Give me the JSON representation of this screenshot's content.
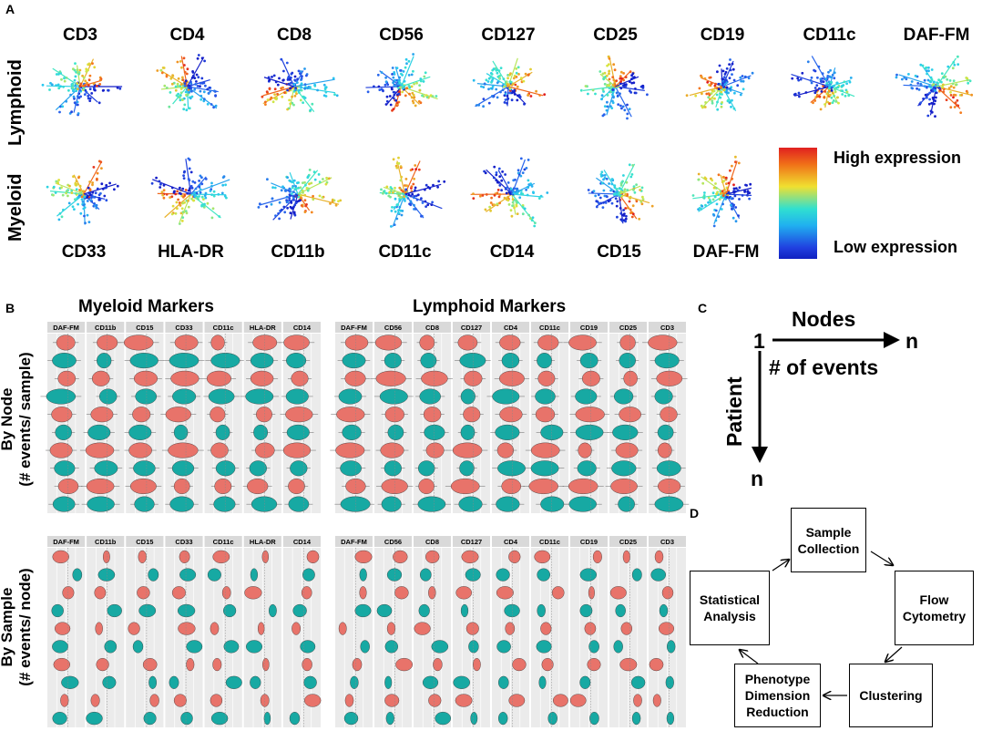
{
  "panelA": {
    "letter": "A",
    "lymphoid_label": "Lymphoid",
    "myeloid_label": "Myeloid",
    "lymphoid_markers": [
      "CD3",
      "CD4",
      "CD8",
      "CD56",
      "CD127",
      "CD25",
      "CD19",
      "CD11c",
      "DAF-FM"
    ],
    "myeloid_markers": [
      "CD33",
      "HLA-DR",
      "CD11b",
      "CD11c",
      "CD14",
      "CD15",
      "DAF-FM"
    ],
    "legend_high": "High expression",
    "legend_low": "Low expression"
  },
  "panelB": {
    "letter": "B",
    "myeloid_title": "Myeloid Markers",
    "lymphoid_title": "Lymphoid Markers",
    "by_node_line1": "By Node",
    "by_node_line2": "(# events/ sample)",
    "by_sample_line1": "By Sample",
    "by_sample_line2": "(# events/ node)",
    "myeloid_headers": [
      "DAF-FM",
      "CD11b",
      "CD15",
      "CD33",
      "CD11c",
      "HLA-DR",
      "CD14"
    ],
    "lymphoid_headers": [
      "DAF-FM",
      "CD56",
      "CD8",
      "CD127",
      "CD4",
      "CD11c",
      "CD19",
      "CD25",
      "CD3"
    ]
  },
  "panelC": {
    "letter": "C",
    "nodes": "Nodes",
    "one": "1",
    "n_right": "n",
    "events": "# of events",
    "patient": "Patient",
    "n_bottom": "n"
  },
  "panelD": {
    "letter": "D",
    "sample_collection": "Sample Collection",
    "flow_cytometry": "Flow Cytometry",
    "clustering": "Clustering",
    "phenotype": "Phenotype Dimension Reduction",
    "statistical": "Statistical Analysis"
  },
  "colors": {
    "violin_red": "#e8736a",
    "violin_teal": "#17a9a3",
    "panel_bg": "#ebebeb",
    "header_bg": "#d9d9d9"
  }
}
